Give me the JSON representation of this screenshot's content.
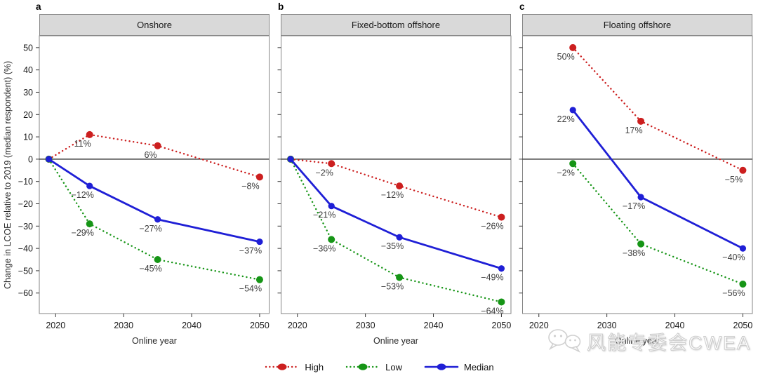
{
  "figure": {
    "watermark": {
      "text": "风能专委会CWEA",
      "icon": "wechat-icon"
    }
  },
  "chart_data": {
    "type": "line",
    "ylabel": "Change in LCOE relative to 2019 (median respondent) (%)",
    "xlabel": "Online year",
    "xlim": [
      2017.6,
      2051.4
    ],
    "ylim": [
      -69.2,
      55.3
    ],
    "y_ticks": [
      50,
      40,
      30,
      20,
      10,
      0,
      -10,
      -20,
      -30,
      -40,
      -50,
      -60
    ],
    "x_ticks": [
      2020,
      2030,
      2040,
      2050
    ],
    "zero_line": true,
    "grid": false,
    "legend_position": "bottom",
    "series_styles": [
      {
        "name": "High",
        "color": "#cc1f1f",
        "line": "dotted"
      },
      {
        "name": "Low",
        "color": "#169516",
        "line": "dotted"
      },
      {
        "name": "Median",
        "color": "#1f1fd6",
        "line": "solid"
      }
    ],
    "panels": [
      {
        "letter": "a",
        "title": "Onshore",
        "x": [
          2019,
          2025,
          2035,
          2050
        ],
        "series": [
          {
            "name": "High",
            "values": [
              0,
              11,
              6,
              -8
            ],
            "labels": [
              "",
              "11%",
              "6%",
              "−8%"
            ]
          },
          {
            "name": "Low",
            "values": [
              0,
              -29,
              -45,
              -54
            ],
            "labels": [
              "",
              "−29%",
              "−45%",
              "−54%"
            ]
          },
          {
            "name": "Median",
            "values": [
              0,
              -12,
              -27,
              -37
            ],
            "labels": [
              "",
              "−12%",
              "−27%",
              "−37%"
            ]
          }
        ]
      },
      {
        "letter": "b",
        "title": "Fixed-bottom offshore",
        "x": [
          2019,
          2025,
          2035,
          2050
        ],
        "series": [
          {
            "name": "High",
            "values": [
              0,
              -2,
              -12,
              -26
            ],
            "labels": [
              "",
              "−2%",
              "−12%",
              "−26%"
            ]
          },
          {
            "name": "Low",
            "values": [
              0,
              -36,
              -53,
              -64
            ],
            "labels": [
              "",
              "−36%",
              "−53%",
              "−64%"
            ]
          },
          {
            "name": "Median",
            "values": [
              0,
              -21,
              -35,
              -49
            ],
            "labels": [
              "",
              "−21%",
              "−35%",
              "−49%"
            ]
          }
        ]
      },
      {
        "letter": "c",
        "title": "Floating offshore",
        "x": [
          2025,
          2035,
          2050
        ],
        "series": [
          {
            "name": "High",
            "values": [
              50,
              17,
              -5
            ],
            "labels": [
              "50%",
              "17%",
              "−5%"
            ]
          },
          {
            "name": "Low",
            "values": [
              -2,
              -38,
              -56
            ],
            "labels": [
              "−2%",
              "−38%",
              "−56%"
            ]
          },
          {
            "name": "Median",
            "values": [
              22,
              -17,
              -40
            ],
            "labels": [
              "22%",
              "−17%",
              "−40%"
            ]
          }
        ]
      }
    ]
  }
}
